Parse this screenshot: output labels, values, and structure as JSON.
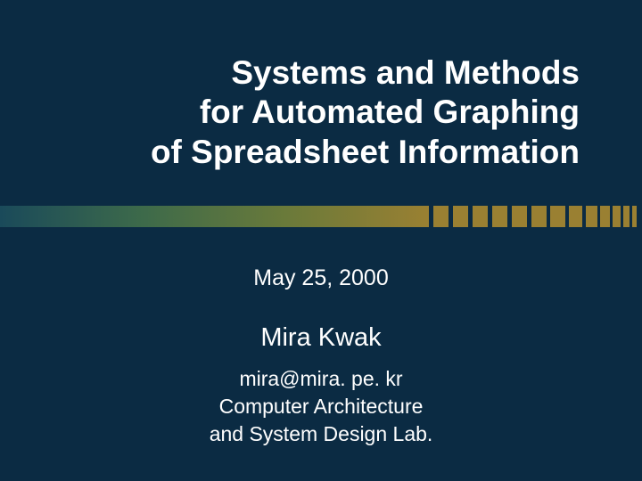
{
  "slide": {
    "background_color": "#0b2b43",
    "text_color": "#ffffff",
    "title": {
      "lines": [
        "Systems and Methods",
        "for Automated Graphing",
        "of Spreadsheet Information"
      ],
      "font_size": 37,
      "font_weight": "bold",
      "align": "right"
    },
    "divider": {
      "gradient_colors": [
        "#1a4a5a",
        "#3d6a4a",
        "#6a7a3a",
        "#9a8032"
      ],
      "height": 24,
      "tick_color": "#0b2b43",
      "ticks": [
        {
          "width": 17,
          "gap": 5
        },
        {
          "width": 17,
          "gap": 5
        },
        {
          "width": 17,
          "gap": 5
        },
        {
          "width": 17,
          "gap": 5
        },
        {
          "width": 17,
          "gap": 5
        },
        {
          "width": 17,
          "gap": 5
        },
        {
          "width": 17,
          "gap": 4
        },
        {
          "width": 15,
          "gap": 4
        },
        {
          "width": 13,
          "gap": 4
        },
        {
          "width": 11,
          "gap": 3
        },
        {
          "width": 9,
          "gap": 3
        },
        {
          "width": 7,
          "gap": 3
        },
        {
          "width": 5,
          "gap": 3
        }
      ]
    },
    "date": "May 25, 2000",
    "author": "Mira Kwak",
    "email": "mira@mira. pe. kr",
    "lab_line1": "Computer Architecture",
    "lab_line2": "and System Design Lab.",
    "date_fontsize": 25,
    "author_fontsize": 29,
    "sub_fontsize": 23
  }
}
